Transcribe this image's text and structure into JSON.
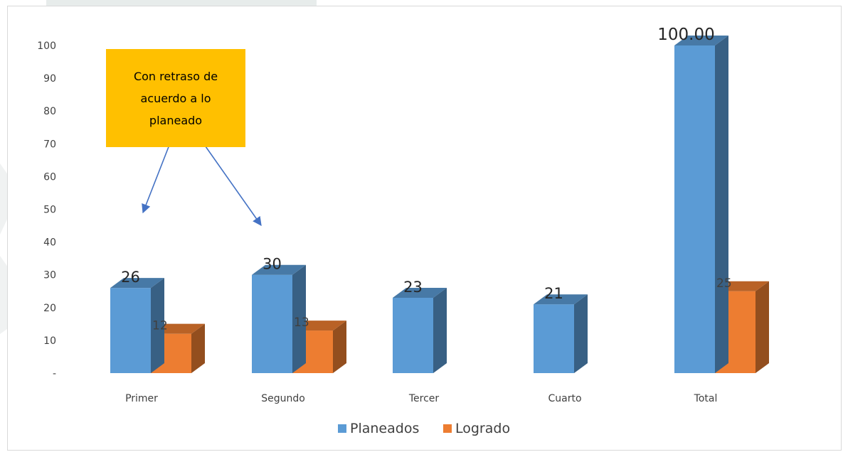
{
  "chart_data": {
    "type": "bar",
    "categories": [
      "Primer",
      "Segundo",
      "Tercer",
      "Cuarto",
      "Total"
    ],
    "series": [
      {
        "name": "Planeados",
        "values": [
          26,
          30,
          23,
          21,
          100
        ],
        "labels": [
          "26",
          "30",
          "23",
          "21",
          "100.00"
        ],
        "color": "#5b9bd5"
      },
      {
        "name": "Logrado",
        "values": [
          12,
          13,
          null,
          null,
          25
        ],
        "labels": [
          "12",
          "13",
          "",
          "",
          "25"
        ],
        "color": "#ed7d31"
      }
    ],
    "ylim": [
      0,
      100
    ],
    "y_ticks": [
      0,
      10,
      20,
      30,
      40,
      50,
      60,
      70,
      80,
      90,
      100
    ],
    "y_tick_labels": [
      "-",
      "10",
      "20",
      "30",
      "40",
      "50",
      "60",
      "70",
      "80",
      "90",
      "100"
    ],
    "grid": false,
    "legend_position": "bottom",
    "three_d": true,
    "annotation": {
      "text": "Con retraso de\nacuerdo a lo\nplaneado",
      "background": "#ffc000",
      "arrow_color": "#4472c4",
      "points_to": [
        "Primer",
        "Segundo"
      ]
    }
  }
}
